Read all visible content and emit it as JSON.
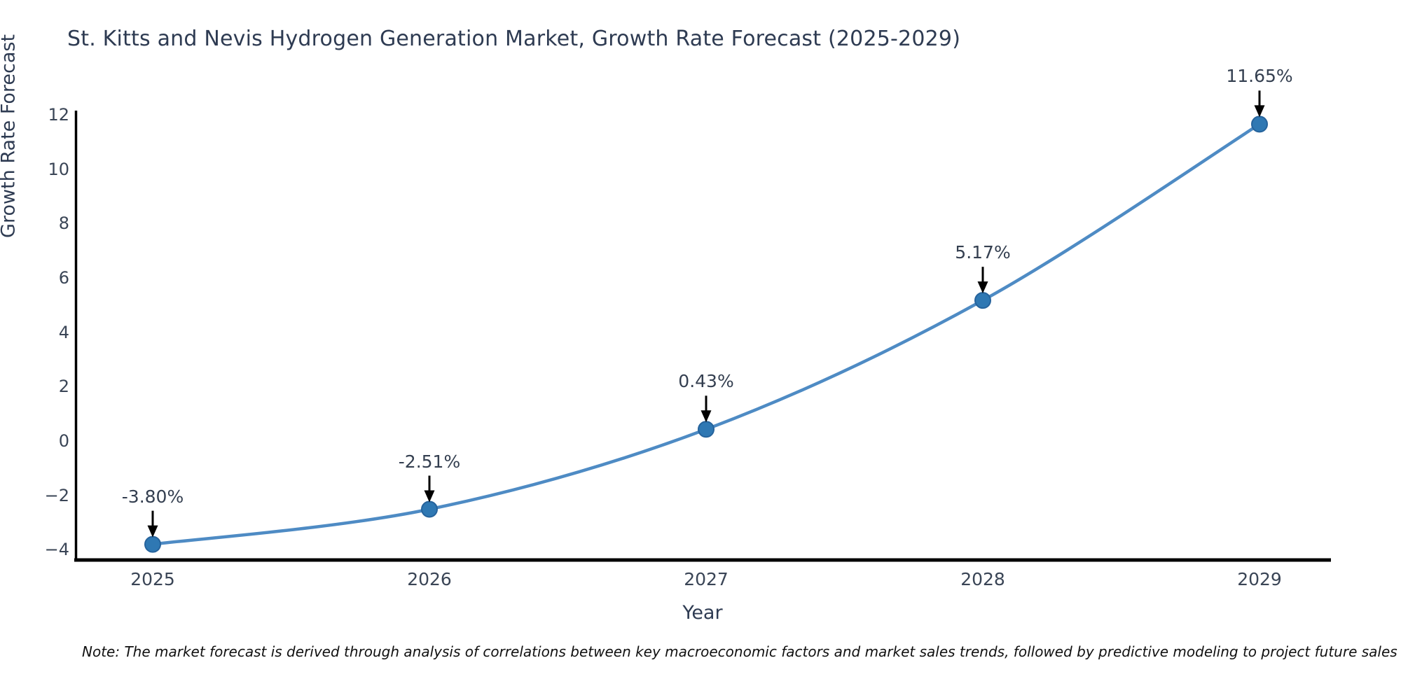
{
  "chart": {
    "title": "St. Kitts and Nevis Hydrogen Generation Market, Growth Rate Forecast (2025-2029)",
    "xlabel": "Year",
    "ylabel": "Growth Rate Forecast",
    "note": "Note: The market forecast is derived through analysis of correlations between key macroeconomic factors and market sales trends, followed by predictive modeling to project future sales"
  },
  "chart_data": {
    "type": "line",
    "title": "St. Kitts and Nevis Hydrogen Generation Market, Growth Rate Forecast (2025-2029)",
    "xlabel": "Year",
    "ylabel": "Growth Rate Forecast",
    "x": [
      2025,
      2026,
      2027,
      2028,
      2029
    ],
    "categories": [
      "2025",
      "2026",
      "2027",
      "2028",
      "2029"
    ],
    "values": [
      -3.8,
      -2.51,
      0.43,
      5.17,
      11.65
    ],
    "point_labels": [
      "-3.80%",
      "-2.51%",
      "0.43%",
      "5.17%",
      "11.65%"
    ],
    "ylim": [
      -4.4,
      12.3
    ],
    "yticks": [
      12,
      10,
      8,
      6,
      4,
      2,
      0,
      -2,
      -4
    ],
    "ytick_labels": [
      "12",
      "10",
      "8",
      "6",
      "4",
      "2",
      "0",
      "−2",
      "−4"
    ],
    "grid": false,
    "legend": "none",
    "annotations": "each point labeled with value and black down arrow",
    "colors": {
      "line": "#4e8bc4",
      "marker_fill": "#2f78b3",
      "marker_edge": "#26639c",
      "axis_spine": "#000000",
      "arrow": "#000000",
      "text": "#2e3b52"
    }
  }
}
